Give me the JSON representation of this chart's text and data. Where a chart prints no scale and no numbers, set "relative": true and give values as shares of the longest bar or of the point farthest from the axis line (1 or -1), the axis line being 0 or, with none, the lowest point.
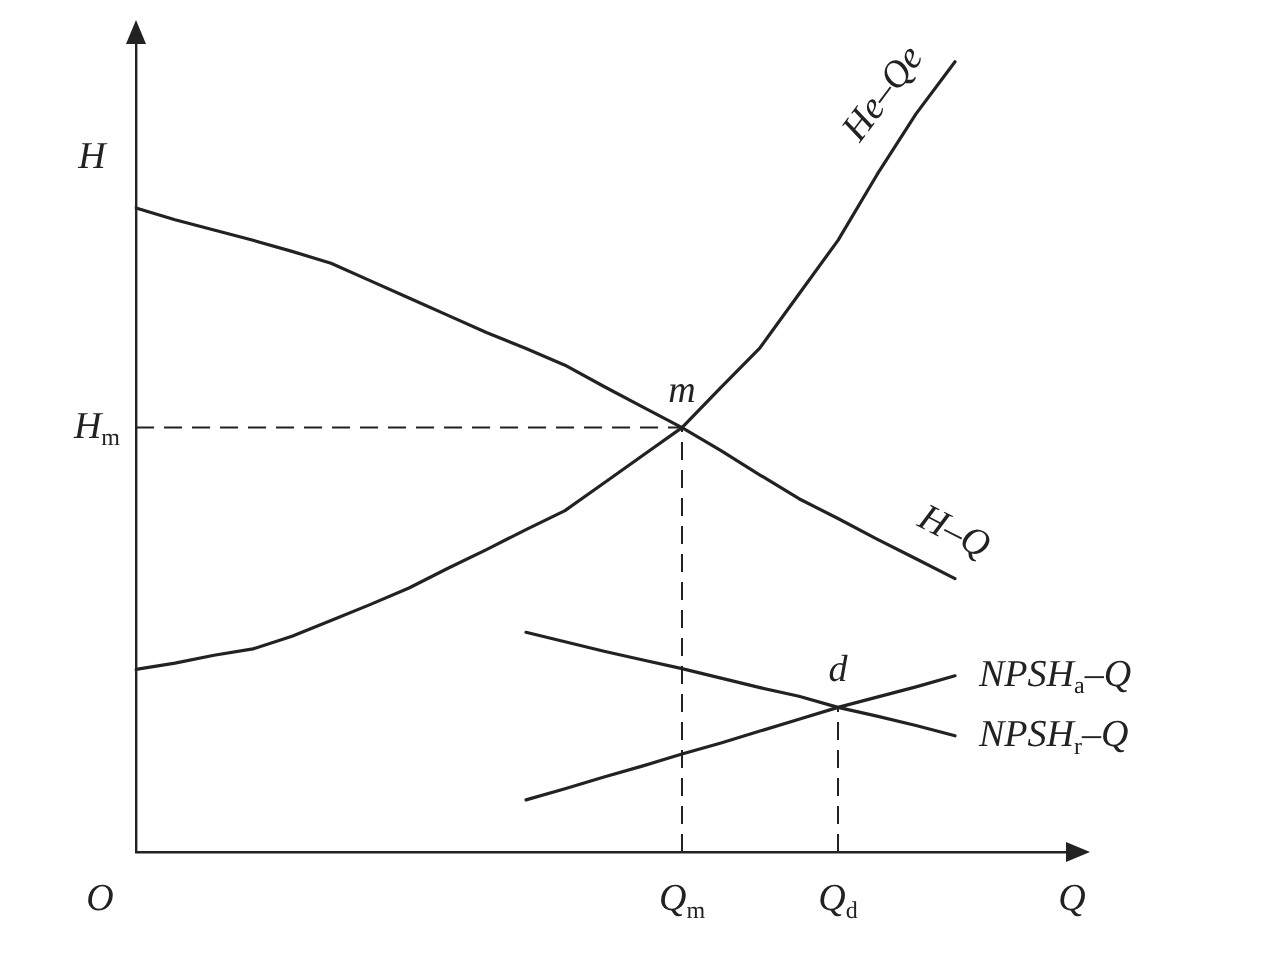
{
  "chart_data": {
    "type": "line",
    "xlabel": "Q",
    "ylabel": "H",
    "relative": true,
    "categories": [
      null,
      null,
      null,
      null,
      null,
      null,
      null,
      null,
      null,
      null,
      null,
      null,
      null,
      null,
      "Q$_{m}$",
      null,
      null,
      null,
      "Q$_{d}$",
      null,
      null,
      null,
      null,
      null,
      null
    ],
    "series": [
      {
        "name": "H–Q",
        "color": "#222222",
        "values": [
          0.815,
          0.8,
          0.787,
          0.774,
          0.76,
          0.745,
          0.723,
          0.701,
          0.679,
          0.657,
          0.637,
          0.616,
          0.589,
          0.563,
          0.537,
          0.508,
          0.477,
          0.447,
          0.422,
          0.396,
          0.371,
          0.346,
          null,
          null,
          null
        ]
      },
      {
        "name": "He–Qe",
        "color": "#222222",
        "values": [
          0.231,
          0.239,
          0.249,
          0.257,
          0.273,
          0.293,
          0.313,
          0.334,
          0.359,
          0.383,
          0.408,
          0.432,
          0.467,
          0.502,
          0.537,
          0.588,
          0.638,
          0.706,
          0.774,
          0.857,
          0.934,
          1,
          null,
          null,
          null
        ]
      },
      {
        "name": "NPSH$_{a}$–Q",
        "color": "#222222",
        "values": [
          null,
          null,
          null,
          null,
          null,
          null,
          null,
          null,
          null,
          null,
          0.066,
          0.08,
          0.095,
          0.109,
          0.124,
          0.138,
          0.153,
          0.168,
          0.183,
          0.196,
          0.209,
          0.223,
          null,
          null,
          null
        ]
      },
      {
        "name": "NPSH$_{r}$–Q",
        "color": "#222222",
        "values": [
          null,
          null,
          null,
          null,
          null,
          null,
          null,
          null,
          null,
          null,
          0.278,
          0.266,
          0.254,
          0.243,
          0.232,
          0.22,
          0.208,
          0.197,
          0.183,
          0.172,
          0.16,
          0.147,
          null,
          null,
          null
        ]
      }
    ],
    "annotations": [
      "O",
      "H$_{m}$",
      {
        "text": "m",
        "x": "Q$_{m}$",
        "y": 0.537
      },
      {
        "text": "d",
        "x": "Q$_{d}$",
        "y": 0.183
      }
    ],
    "marker": "none",
    "line_style": "solid",
    "grid": false,
    "legend": false
  }
}
